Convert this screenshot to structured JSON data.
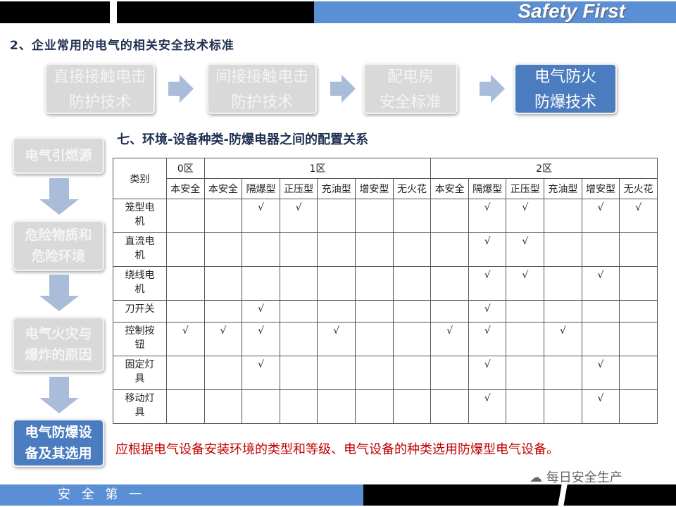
{
  "header": {
    "brand": "Safety First"
  },
  "subtitle": "2、企业常用的电气的相关安全技术标准",
  "steps": [
    {
      "line1": "直接接触电击",
      "line2": "防护技术",
      "active": false
    },
    {
      "line1": "间接接触电击",
      "line2": "防护技术",
      "active": false
    },
    {
      "line1": "配电房",
      "line2": "安全标准",
      "active": false
    },
    {
      "line1": "电气防火",
      "line2": "防爆技术",
      "active": true
    }
  ],
  "sidebar": [
    {
      "line1": "电气引燃源",
      "line2": "",
      "active": false
    },
    {
      "line1": "危险物质和",
      "line2": "危险环境",
      "active": false
    },
    {
      "line1": "电气火灾与",
      "line2": "爆炸的原因",
      "active": false
    },
    {
      "line1": "电气防爆设",
      "line2": "备及其选用",
      "active": true
    }
  ],
  "section_title": "七、环境-设备种类-防爆电器之间的配置关系",
  "table": {
    "corner": "类别",
    "zones": [
      {
        "label": "0区",
        "span": 1
      },
      {
        "label": "1区",
        "span": 6
      },
      {
        "label": "2区",
        "span": 6
      }
    ],
    "columns": [
      "本安全",
      "本安全",
      "隔爆型",
      "正压型",
      "充油型",
      "增安型",
      "无火花",
      "本安全",
      "隔爆型",
      "正压型",
      "充油型",
      "增安型",
      "无火花"
    ],
    "rows": [
      {
        "label": "笼型电机",
        "cells": [
          "",
          "",
          "√",
          "√",
          "",
          "",
          "",
          "",
          "√",
          "√",
          "",
          "√",
          "√"
        ]
      },
      {
        "label": "直流电机",
        "cells": [
          "",
          "",
          "",
          "",
          "",
          "",
          "",
          "",
          "√",
          "√",
          "",
          "",
          ""
        ]
      },
      {
        "label": "绕线电机",
        "cells": [
          "",
          "",
          "",
          "",
          "",
          "",
          "",
          "",
          "√",
          "√",
          "",
          "√",
          ""
        ]
      },
      {
        "label": "刀开关",
        "cells": [
          "",
          "",
          "√",
          "",
          "",
          "",
          "",
          "",
          "√",
          "",
          "",
          "",
          ""
        ]
      },
      {
        "label": "控制按钮",
        "cells": [
          "√",
          "√",
          "√",
          "",
          "√",
          "",
          "",
          "√",
          "√",
          "",
          "√",
          "",
          ""
        ]
      },
      {
        "label": "固定灯具",
        "cells": [
          "",
          "",
          "√",
          "",
          "",
          "",
          "",
          "",
          "√",
          "",
          "",
          "√",
          ""
        ]
      },
      {
        "label": "移动灯具",
        "cells": [
          "",
          "",
          "",
          "",
          "",
          "",
          "",
          "",
          "√",
          "",
          "",
          "√",
          ""
        ]
      }
    ]
  },
  "note": "应根据电气设备安装环境的类型和等级、电气设备的种类选用防爆型电气设备。",
  "watermark": "每日安全生产",
  "footer": {
    "label": "安 全 第 一"
  }
}
